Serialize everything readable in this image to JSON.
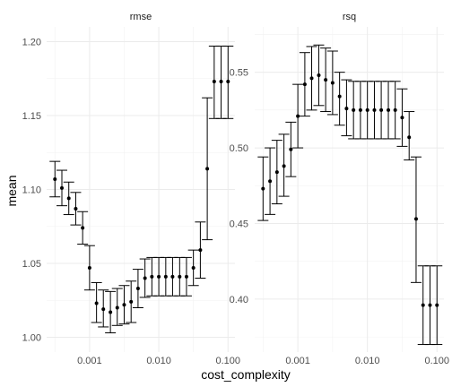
{
  "chart_data": {
    "type": "scatter",
    "subtype": "point-with-error-bars, faceted",
    "xlabel": "cost_complexity",
    "ylabel": "mean",
    "x_scale": "log10",
    "x_ticks": [
      0.001,
      0.01,
      0.1
    ],
    "x_tick_labels": [
      "0.001",
      "0.010",
      "0.100"
    ],
    "grid": true,
    "x": [
      0.000316,
      0.000398,
      0.000501,
      0.000631,
      0.000794,
      0.001,
      0.00126,
      0.00158,
      0.002,
      0.00251,
      0.00316,
      0.00398,
      0.00501,
      0.00631,
      0.00794,
      0.01,
      0.0126,
      0.0158,
      0.02,
      0.0251,
      0.0316,
      0.0398,
      0.0501,
      0.0631,
      0.0794,
      0.1
    ],
    "facets": [
      {
        "name": "rmse",
        "ylim": [
          0.99,
          1.21
        ],
        "y_ticks": [
          1.0,
          1.05,
          1.1,
          1.15,
          1.2
        ],
        "y_tick_labels": [
          "1.00",
          "1.05",
          "1.10",
          "1.15",
          "1.20"
        ],
        "mean": [
          1.107,
          1.101,
          1.094,
          1.087,
          1.074,
          1.047,
          1.023,
          1.019,
          1.017,
          1.02,
          1.022,
          1.024,
          1.033,
          1.04,
          1.041,
          1.041,
          1.041,
          1.041,
          1.041,
          1.041,
          1.047,
          1.059,
          1.114,
          1.173,
          1.173,
          1.173
        ],
        "lower": [
          1.095,
          1.089,
          1.083,
          1.076,
          1.063,
          1.032,
          1.01,
          1.007,
          1.003,
          1.008,
          1.009,
          1.01,
          1.02,
          1.027,
          1.028,
          1.028,
          1.028,
          1.028,
          1.028,
          1.028,
          1.035,
          1.04,
          1.066,
          1.148,
          1.148,
          1.148
        ],
        "upper": [
          1.119,
          1.113,
          1.105,
          1.098,
          1.085,
          1.062,
          1.037,
          1.032,
          1.031,
          1.033,
          1.035,
          1.038,
          1.046,
          1.053,
          1.054,
          1.054,
          1.054,
          1.054,
          1.054,
          1.054,
          1.059,
          1.078,
          1.162,
          1.197,
          1.197,
          1.197
        ]
      },
      {
        "name": "rsq",
        "ylim": [
          0.365,
          0.58
        ],
        "y_ticks": [
          0.4,
          0.45,
          0.5,
          0.55
        ],
        "y_tick_labels": [
          "0.40",
          "0.45",
          "0.50",
          "0.55"
        ],
        "mean": [
          0.473,
          0.478,
          0.484,
          0.488,
          0.499,
          0.521,
          0.542,
          0.546,
          0.548,
          0.545,
          0.543,
          0.534,
          0.526,
          0.525,
          0.525,
          0.525,
          0.525,
          0.525,
          0.525,
          0.525,
          0.52,
          0.507,
          0.453,
          0.396,
          0.396,
          0.396
        ],
        "lower": [
          0.452,
          0.456,
          0.463,
          0.468,
          0.481,
          0.5,
          0.521,
          0.525,
          0.528,
          0.524,
          0.522,
          0.515,
          0.508,
          0.506,
          0.506,
          0.506,
          0.506,
          0.506,
          0.506,
          0.506,
          0.501,
          0.492,
          0.411,
          0.37,
          0.37,
          0.37
        ],
        "upper": [
          0.494,
          0.5,
          0.505,
          0.509,
          0.517,
          0.542,
          0.563,
          0.567,
          0.568,
          0.566,
          0.564,
          0.55,
          0.545,
          0.544,
          0.544,
          0.544,
          0.544,
          0.544,
          0.544,
          0.544,
          0.539,
          0.524,
          0.494,
          0.422,
          0.422,
          0.422
        ]
      }
    ]
  }
}
